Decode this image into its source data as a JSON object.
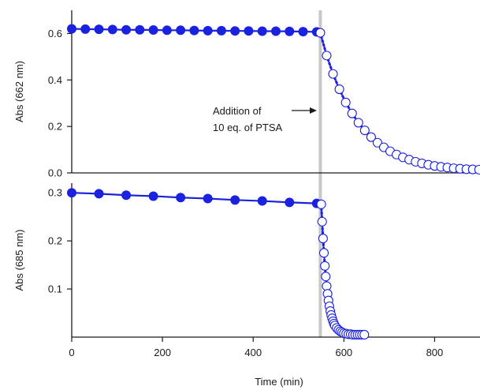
{
  "chart_data": [
    {
      "type": "scatter",
      "panel": "top",
      "ylabel": "Abs (662 nm)",
      "xlim": [
        0,
        900
      ],
      "ylim": [
        0,
        0.7
      ],
      "yticks": [
        0.0,
        0.2,
        0.4,
        0.6
      ],
      "ytick_labels": [
        "0.0",
        "0.2",
        "0.4",
        "0.6"
      ],
      "grid": false,
      "series": [
        {
          "marker": "filled-circle",
          "line": "solid",
          "color": "#1a22e0",
          "x": [
            0,
            30,
            60,
            90,
            120,
            150,
            180,
            210,
            240,
            270,
            300,
            330,
            360,
            390,
            420,
            450,
            480,
            510,
            540
          ],
          "y": [
            0.62,
            0.619,
            0.618,
            0.617,
            0.616,
            0.616,
            0.615,
            0.614,
            0.614,
            0.613,
            0.612,
            0.612,
            0.611,
            0.611,
            0.61,
            0.61,
            0.609,
            0.608,
            0.607
          ]
        },
        {
          "marker": "open-circle",
          "line": "dotted",
          "color": "#1a22e0",
          "x": [
            548,
            562,
            576,
            590,
            604,
            618,
            632,
            646,
            660,
            674,
            688,
            702,
            716,
            730,
            744,
            758,
            772,
            786,
            800,
            814,
            828,
            842,
            856,
            870,
            884,
            898
          ],
          "y": [
            0.603,
            0.505,
            0.426,
            0.36,
            0.303,
            0.256,
            0.216,
            0.183,
            0.154,
            0.13,
            0.11,
            0.093,
            0.079,
            0.067,
            0.057,
            0.048,
            0.041,
            0.035,
            0.03,
            0.026,
            0.023,
            0.02,
            0.018,
            0.016,
            0.015,
            0.014
          ]
        }
      ],
      "annotation": {
        "line1": "Addition of",
        "line2": "10 eq. of PTSA",
        "x": 548
      }
    },
    {
      "type": "scatter",
      "panel": "bottom",
      "ylabel": "Abs (685 nm)",
      "xlabel": "Time (min)",
      "xlim": [
        0,
        900
      ],
      "ylim": [
        0,
        0.32
      ],
      "xticks": [
        0,
        200,
        400,
        600,
        800
      ],
      "xtick_labels": [
        "0",
        "200",
        "400",
        "600",
        "800"
      ],
      "yticks": [
        0.1,
        0.2,
        0.3
      ],
      "ytick_labels": [
        "0.1",
        "0.2",
        "0.3"
      ],
      "grid": false,
      "series": [
        {
          "marker": "filled-circle",
          "line": "solid",
          "color": "#1a22e0",
          "x": [
            0,
            60,
            120,
            180,
            240,
            300,
            360,
            420,
            480,
            540
          ],
          "y": [
            0.3,
            0.298,
            0.295,
            0.293,
            0.29,
            0.288,
            0.285,
            0.283,
            0.28,
            0.278
          ]
        },
        {
          "marker": "open-circle",
          "line": "dotted",
          "color": "#1a22e0",
          "x": [
            550,
            552,
            554,
            556,
            558,
            560,
            562,
            564,
            566,
            568,
            570,
            572,
            574,
            576,
            578,
            580,
            584,
            588,
            592,
            596,
            600,
            605,
            610,
            615,
            620,
            625,
            630,
            635,
            640,
            645
          ],
          "y": [
            0.276,
            0.24,
            0.205,
            0.175,
            0.148,
            0.126,
            0.106,
            0.09,
            0.076,
            0.064,
            0.054,
            0.046,
            0.039,
            0.033,
            0.028,
            0.024,
            0.019,
            0.015,
            0.012,
            0.01,
            0.008,
            0.007,
            0.006,
            0.006,
            0.005,
            0.005,
            0.005,
            0.005,
            0.005,
            0.005
          ]
        }
      ]
    }
  ],
  "colors": {
    "series": "#1a22e0",
    "marker_open_fill": "#ffffff",
    "event_line": "#c8c8c8",
    "axis": "#1a1a1a"
  }
}
